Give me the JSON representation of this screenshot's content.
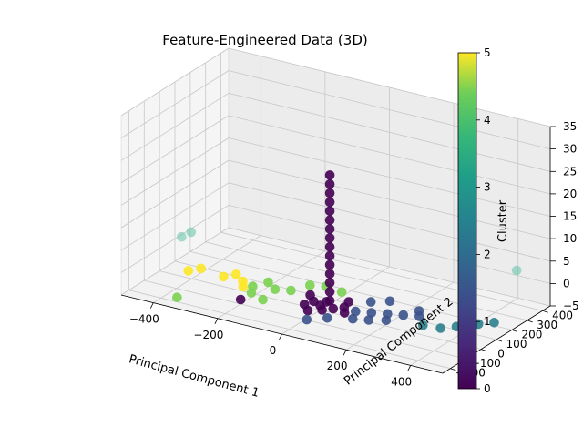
{
  "chart_data": {
    "type": "scatter",
    "projection": "3d",
    "title": "Feature-Engineered Data (3D)",
    "xlabel": "Principal Component 1",
    "ylabel": "Principal Component 2",
    "zlabel": "",
    "x_ticks": [
      "−400",
      "−200",
      "0",
      "200",
      "400"
    ],
    "y_ticks": [
      "−200",
      "−100",
      "0",
      "100",
      "200",
      "300",
      "400"
    ],
    "z_ticks": [
      "−5",
      "0",
      "5",
      "10",
      "15",
      "20",
      "25",
      "30",
      "35"
    ],
    "colorbar": {
      "label": "Cluster",
      "ticks": [
        "0",
        "1",
        "2",
        "3",
        "4",
        "5"
      ],
      "range": [
        0,
        5
      ],
      "colormap": "viridis"
    },
    "grid": true,
    "clusters": [
      0,
      1,
      2,
      3,
      4,
      5
    ],
    "points": [
      {
        "x": 20,
        "y": 20,
        "z": 25,
        "cluster": 0
      },
      {
        "x": 20,
        "y": 20,
        "z": 23,
        "cluster": 0
      },
      {
        "x": 20,
        "y": 20,
        "z": 21,
        "cluster": 0
      },
      {
        "x": 20,
        "y": 20,
        "z": 19,
        "cluster": 0
      },
      {
        "x": 20,
        "y": 20,
        "z": 17,
        "cluster": 0
      },
      {
        "x": 20,
        "y": 20,
        "z": 15,
        "cluster": 0
      },
      {
        "x": 20,
        "y": 20,
        "z": 13,
        "cluster": 0
      },
      {
        "x": 20,
        "y": 20,
        "z": 11,
        "cluster": 0
      },
      {
        "x": 20,
        "y": 20,
        "z": 9,
        "cluster": 0
      },
      {
        "x": 20,
        "y": 20,
        "z": 7,
        "cluster": 0
      },
      {
        "x": 20,
        "y": 20,
        "z": 5,
        "cluster": 0
      },
      {
        "x": 20,
        "y": 20,
        "z": 3,
        "cluster": 0
      },
      {
        "x": 20,
        "y": 20,
        "z": 1,
        "cluster": 0
      },
      {
        "x": 20,
        "y": 20,
        "z": -1,
        "cluster": 0
      },
      {
        "x": 20,
        "y": 20,
        "z": -3,
        "cluster": 0
      },
      {
        "x": 0,
        "y": 0,
        "z": -4,
        "cluster": 0
      },
      {
        "x": 40,
        "y": 0,
        "z": -4,
        "cluster": 0
      },
      {
        "x": 0,
        "y": 40,
        "z": -4,
        "cluster": 0
      },
      {
        "x": -30,
        "y": 20,
        "z": -4,
        "cluster": 0
      },
      {
        "x": 60,
        "y": 30,
        "z": -4,
        "cluster": 0
      },
      {
        "x": 20,
        "y": -30,
        "z": -4,
        "cluster": 0
      },
      {
        "x": -60,
        "y": 60,
        "z": -4,
        "cluster": 0
      },
      {
        "x": 80,
        "y": -10,
        "z": -4,
        "cluster": 0
      },
      {
        "x": -10,
        "y": -60,
        "z": -4,
        "cluster": 0
      },
      {
        "x": -40,
        "y": -20,
        "z": -4,
        "cluster": 0
      },
      {
        "x": 50,
        "y": 80,
        "z": -4,
        "cluster": 0
      },
      {
        "x": -200,
        "y": -100,
        "z": -4,
        "cluster": 0
      },
      {
        "x": 100,
        "y": 20,
        "z": -4,
        "cluster": 1
      },
      {
        "x": 140,
        "y": 40,
        "z": -4,
        "cluster": 1
      },
      {
        "x": 180,
        "y": 60,
        "z": -4,
        "cluster": 1
      },
      {
        "x": 220,
        "y": 80,
        "z": -4,
        "cluster": 1
      },
      {
        "x": 260,
        "y": 100,
        "z": -4,
        "cluster": 1
      },
      {
        "x": 120,
        "y": -40,
        "z": -4,
        "cluster": 1
      },
      {
        "x": 160,
        "y": -20,
        "z": -4,
        "cluster": 1
      },
      {
        "x": 60,
        "y": -80,
        "z": -4,
        "cluster": 1
      },
      {
        "x": 200,
        "y": 10,
        "z": -4,
        "cluster": 1
      },
      {
        "x": 100,
        "y": 120,
        "z": -4,
        "cluster": 1
      },
      {
        "x": 140,
        "y": 160,
        "z": -4,
        "cluster": 1
      },
      {
        "x": 20,
        "y": -130,
        "z": -4,
        "cluster": 1
      },
      {
        "x": 240,
        "y": 140,
        "z": -4,
        "cluster": 1
      },
      {
        "x": 300,
        "y": 40,
        "z": -4,
        "cluster": 2
      },
      {
        "x": 350,
        "y": 50,
        "z": -4,
        "cluster": 2
      },
      {
        "x": 380,
        "y": 90,
        "z": -4,
        "cluster": 2
      },
      {
        "x": 420,
        "y": 150,
        "z": -4,
        "cluster": 2
      },
      {
        "x": 450,
        "y": 190,
        "z": -4,
        "cluster": 2
      },
      {
        "x": 410,
        "y": 420,
        "z": 2,
        "cluster": 3
      },
      {
        "x": -460,
        "y": 60,
        "z": 2,
        "cluster": 3
      },
      {
        "x": -440,
        "y": 80,
        "z": 3,
        "cluster": 3
      },
      {
        "x": -350,
        "y": -200,
        "z": -4,
        "cluster": 4
      },
      {
        "x": -200,
        "y": -30,
        "z": -4,
        "cluster": 4
      },
      {
        "x": -220,
        "y": 20,
        "z": -4,
        "cluster": 4
      },
      {
        "x": -160,
        "y": 40,
        "z": -4,
        "cluster": 4
      },
      {
        "x": -120,
        "y": 60,
        "z": -4,
        "cluster": 4
      },
      {
        "x": -80,
        "y": 100,
        "z": -3,
        "cluster": 4
      },
      {
        "x": -40,
        "y": 120,
        "z": -3,
        "cluster": 4
      },
      {
        "x": 0,
        "y": 140,
        "z": -4,
        "cluster": 4
      },
      {
        "x": -200,
        "y": 80,
        "z": -4,
        "cluster": 4
      },
      {
        "x": -150,
        "y": -60,
        "z": -4,
        "cluster": 4
      },
      {
        "x": -420,
        "y": 20,
        "z": -4,
        "cluster": 5
      },
      {
        "x": -400,
        "y": 60,
        "z": -4,
        "cluster": 5
      },
      {
        "x": -320,
        "y": 40,
        "z": -4,
        "cluster": 5
      },
      {
        "x": -300,
        "y": 80,
        "z": -4,
        "cluster": 5
      },
      {
        "x": -260,
        "y": 40,
        "z": -4,
        "cluster": 5
      },
      {
        "x": -240,
        "y": 0,
        "z": -4,
        "cluster": 5
      }
    ]
  }
}
